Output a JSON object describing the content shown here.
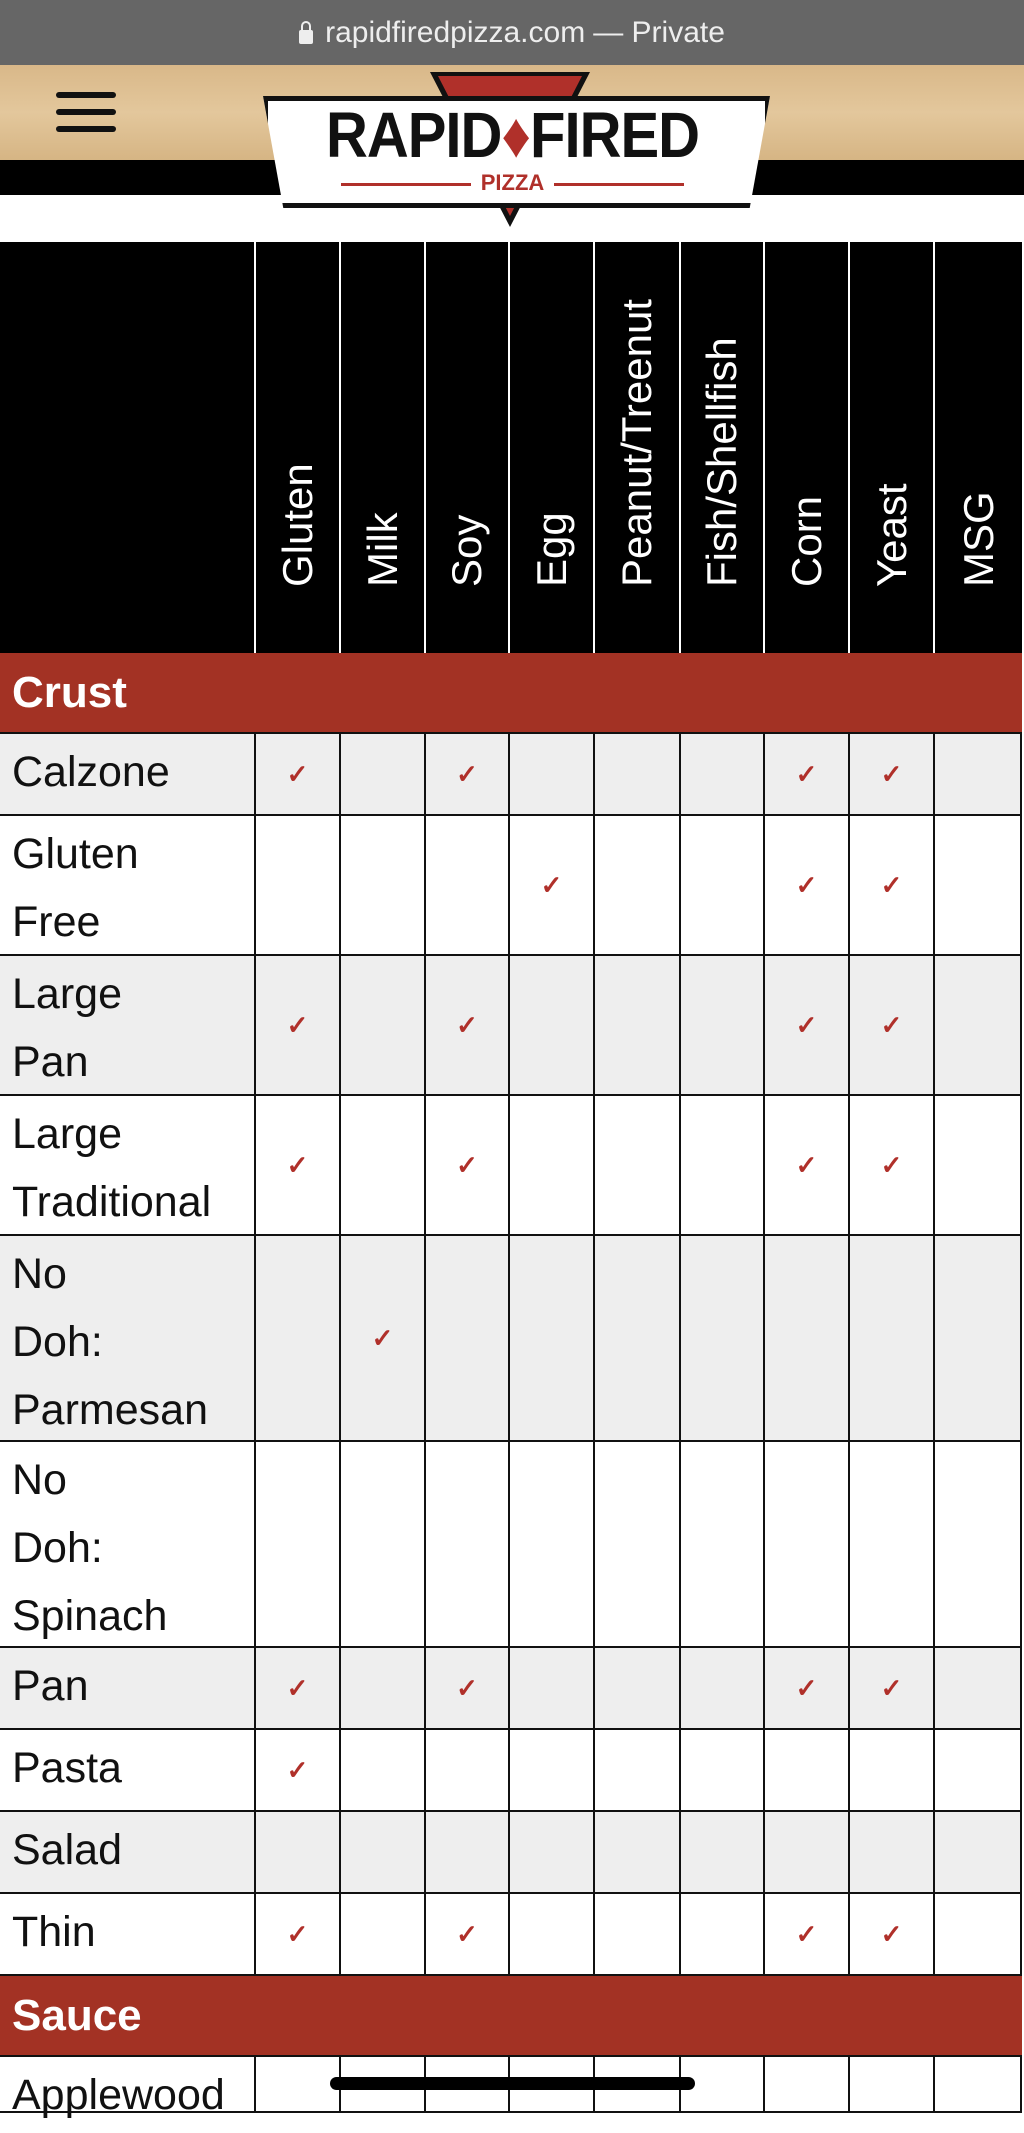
{
  "browser": {
    "url": "rapidfiredpizza.com",
    "mode": "— Private",
    "lock_icon": "lock-icon"
  },
  "header": {
    "menu_icon": "hamburger-icon",
    "logo": {
      "word1": "RAPID",
      "word2": "FIRED",
      "sub": "PIZZA"
    }
  },
  "colors": {
    "section": "#a33224",
    "check": "#b0302a",
    "alt_row": "#eeeeee"
  },
  "columns": [
    "Gluten",
    "Milk",
    "Soy",
    "Egg",
    "Peanut/Treenut",
    "Fish/Shellfish",
    "Corn",
    "Yeast",
    "MSG"
  ],
  "sections": [
    {
      "title": "Crust",
      "rows": [
        {
          "name": "Calzone",
          "checks": [
            true,
            false,
            true,
            false,
            false,
            false,
            true,
            true,
            false
          ]
        },
        {
          "name": "Gluten\nFree",
          "checks": [
            false,
            false,
            false,
            true,
            false,
            false,
            true,
            true,
            false
          ]
        },
        {
          "name": "Large\nPan",
          "checks": [
            true,
            false,
            true,
            false,
            false,
            false,
            true,
            true,
            false
          ]
        },
        {
          "name": "Large\nTraditional",
          "checks": [
            true,
            false,
            true,
            false,
            false,
            false,
            true,
            true,
            false
          ]
        },
        {
          "name": "No\nDoh:\nParmesan",
          "checks": [
            false,
            true,
            false,
            false,
            false,
            false,
            false,
            false,
            false
          ]
        },
        {
          "name": "No\nDoh:\nSpinach",
          "checks": [
            false,
            false,
            false,
            false,
            false,
            false,
            false,
            false,
            false
          ]
        },
        {
          "name": "Pan",
          "checks": [
            true,
            false,
            true,
            false,
            false,
            false,
            true,
            true,
            false
          ]
        },
        {
          "name": "Pasta",
          "checks": [
            true,
            false,
            false,
            false,
            false,
            false,
            false,
            false,
            false
          ]
        },
        {
          "name": "Salad",
          "checks": [
            false,
            false,
            false,
            false,
            false,
            false,
            false,
            false,
            false
          ]
        },
        {
          "name": "Thin",
          "checks": [
            true,
            false,
            true,
            false,
            false,
            false,
            true,
            true,
            false
          ]
        }
      ]
    },
    {
      "title": "Sauce",
      "rows": [
        {
          "name": "Applewood",
          "checks": [
            false,
            false,
            false,
            false,
            false,
            false,
            false,
            false,
            false
          ]
        }
      ]
    }
  ],
  "check_symbol": "✓"
}
